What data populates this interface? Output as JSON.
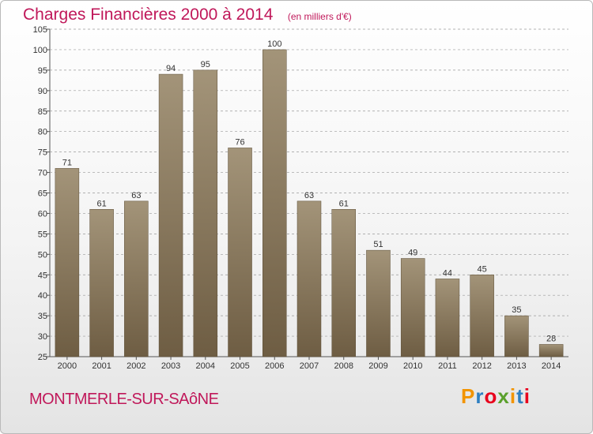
{
  "header": {
    "title": "Charges Financières 2000 à 2014",
    "subtitle": "(en milliers d'€)"
  },
  "footer": {
    "city": "MONTMERLE-SUR-SAôNE",
    "logo": "Proxiti"
  },
  "colors": {
    "title": "#c0185a",
    "bar_top": "#a39479",
    "bar_bottom": "#6e5d43",
    "grid": "#9a9a9a",
    "logo": [
      "#f29400",
      "#2e7fc1",
      "#e8001c",
      "#5aa02c",
      "#f29400",
      "#2e7fc1",
      "#e8001c"
    ]
  },
  "chart_data": {
    "type": "bar",
    "categories": [
      "2000",
      "2001",
      "2002",
      "2003",
      "2004",
      "2005",
      "2006",
      "2007",
      "2008",
      "2009",
      "2010",
      "2011",
      "2012",
      "2013",
      "2014"
    ],
    "values": [
      71,
      61,
      63,
      94,
      95,
      76,
      100,
      63,
      61,
      51,
      49,
      44,
      45,
      35,
      28
    ],
    "yticks": [
      25,
      30,
      35,
      40,
      45,
      50,
      55,
      60,
      65,
      70,
      75,
      80,
      85,
      90,
      95,
      100,
      105
    ],
    "ylim": [
      25,
      105
    ],
    "grid": "horizontal dashed",
    "legend": "none"
  }
}
